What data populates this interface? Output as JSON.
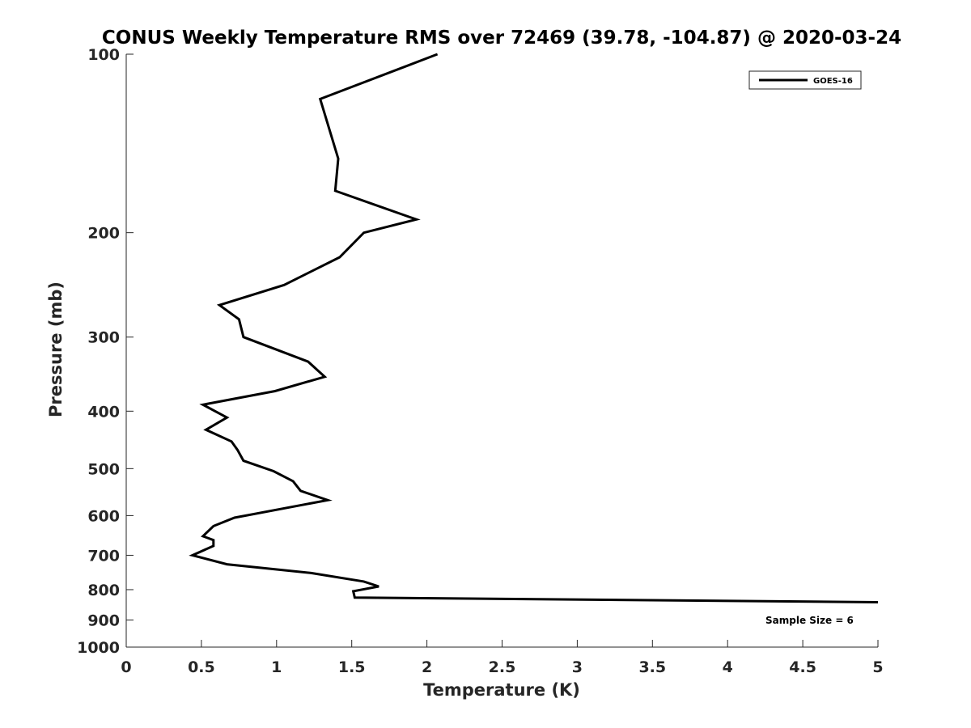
{
  "chart_data": {
    "type": "line",
    "title": "CONUS Weekly Temperature RMS over 72469 (39.78, -104.87) @ 2020-03-24",
    "xlabel": "Temperature (K)",
    "ylabel": "Pressure (mb)",
    "xlim": [
      0,
      5
    ],
    "ylim": [
      100,
      1000
    ],
    "yscale": "log",
    "y_reversed": true,
    "xticks": [
      "0",
      "0.5",
      "1",
      "1.5",
      "2",
      "2.5",
      "3",
      "3.5",
      "4",
      "4.5",
      "5"
    ],
    "yticks": [
      "100",
      "200",
      "300",
      "400",
      "500",
      "600",
      "700",
      "800",
      "900",
      "1000"
    ],
    "grid": false,
    "legend_position": "top-right",
    "annotation": "Sample Size = 6",
    "series": [
      {
        "name": "GOES-16",
        "color": "#000000",
        "points": [
          [
            2.07,
            100
          ],
          [
            1.29,
            119
          ],
          [
            1.41,
            150
          ],
          [
            1.39,
            170
          ],
          [
            1.93,
            190
          ],
          [
            1.58,
            200
          ],
          [
            1.42,
            220
          ],
          [
            1.05,
            245
          ],
          [
            0.62,
            265
          ],
          [
            0.75,
            280
          ],
          [
            0.78,
            300
          ],
          [
            1.21,
            330
          ],
          [
            1.32,
            350
          ],
          [
            0.99,
            370
          ],
          [
            0.51,
            390
          ],
          [
            0.67,
            410
          ],
          [
            0.53,
            430
          ],
          [
            0.7,
            450
          ],
          [
            0.74,
            465
          ],
          [
            0.78,
            485
          ],
          [
            0.98,
            505
          ],
          [
            1.11,
            525
          ],
          [
            1.16,
            545
          ],
          [
            1.34,
            565
          ],
          [
            0.72,
            605
          ],
          [
            0.58,
            625
          ],
          [
            0.51,
            650
          ],
          [
            0.58,
            660
          ],
          [
            0.58,
            675
          ],
          [
            0.44,
            700
          ],
          [
            0.67,
            725
          ],
          [
            1.23,
            750
          ],
          [
            1.58,
            775
          ],
          [
            1.68,
            790
          ],
          [
            1.51,
            805
          ],
          [
            1.52,
            825
          ],
          [
            5.0,
            840
          ]
        ]
      }
    ]
  }
}
